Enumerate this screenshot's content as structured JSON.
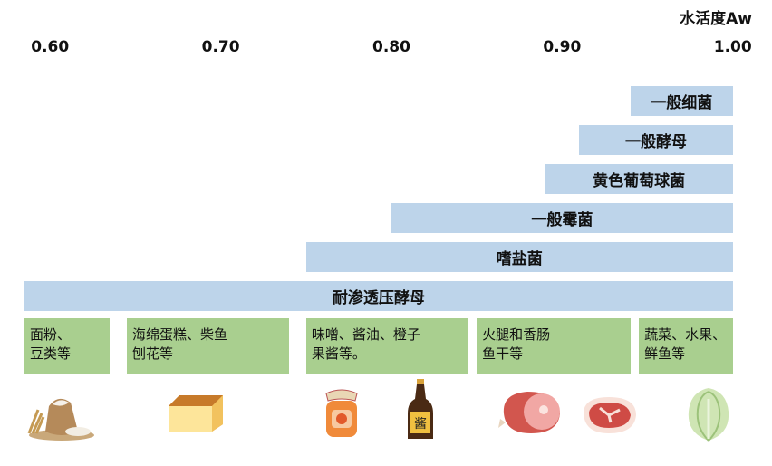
{
  "chart_data": {
    "type": "bar",
    "xlabel": "水活度Aw",
    "xlim": [
      0.585,
      1.015
    ],
    "ticks": [
      {
        "value": 0.6,
        "label": "0.60"
      },
      {
        "value": 0.7,
        "label": "0.70"
      },
      {
        "value": 0.8,
        "label": "0.80"
      },
      {
        "value": 0.9,
        "label": "0.90"
      },
      {
        "value": 1.0,
        "label": "1.00"
      }
    ],
    "bars": [
      {
        "label": "一般细菌",
        "min_aw": 0.94,
        "max_aw": 1.0
      },
      {
        "label": "一般酵母",
        "min_aw": 0.91,
        "max_aw": 1.0
      },
      {
        "label": "黄色葡萄球菌",
        "min_aw": 0.89,
        "max_aw": 1.0
      },
      {
        "label": "一般霉菌",
        "min_aw": 0.8,
        "max_aw": 1.0
      },
      {
        "label": "嗜盐菌",
        "min_aw": 0.75,
        "max_aw": 1.0
      },
      {
        "label": "耐渗透压酵母",
        "min_aw": 0.6,
        "max_aw": 1.0
      }
    ],
    "food_groups": [
      {
        "lines": [
          "面粉、",
          "豆类等"
        ],
        "from_aw": 0.6,
        "to_aw": 0.635,
        "icons": [
          "flour-sack-icon"
        ]
      },
      {
        "lines": [
          "海绵蛋糕、柴鱼",
          "刨花等"
        ],
        "from_aw": 0.645,
        "to_aw": 0.74,
        "icons": [
          "sponge-cake-icon"
        ]
      },
      {
        "lines": [
          "味噌、酱油、橙子",
          "果酱等。"
        ],
        "from_aw": 0.75,
        "to_aw": 0.845,
        "icons": [
          "jam-jar-icon",
          "soy-sauce-bottle-icon"
        ]
      },
      {
        "lines": [
          "火腿和香肠",
          "鱼干等"
        ],
        "from_aw": 0.85,
        "to_aw": 0.94,
        "icons": [
          "ham-icon",
          "steak-icon"
        ]
      },
      {
        "lines": [
          "蔬菜、水果、",
          "鲜鱼等"
        ],
        "from_aw": 0.945,
        "to_aw": 1.0,
        "icons": [
          "cabbage-icon"
        ]
      }
    ],
    "grid": false
  },
  "colors": {
    "bar": "#bdd4ea",
    "food_box": "#a9cf8f",
    "axis_line": "#8a99a8"
  }
}
